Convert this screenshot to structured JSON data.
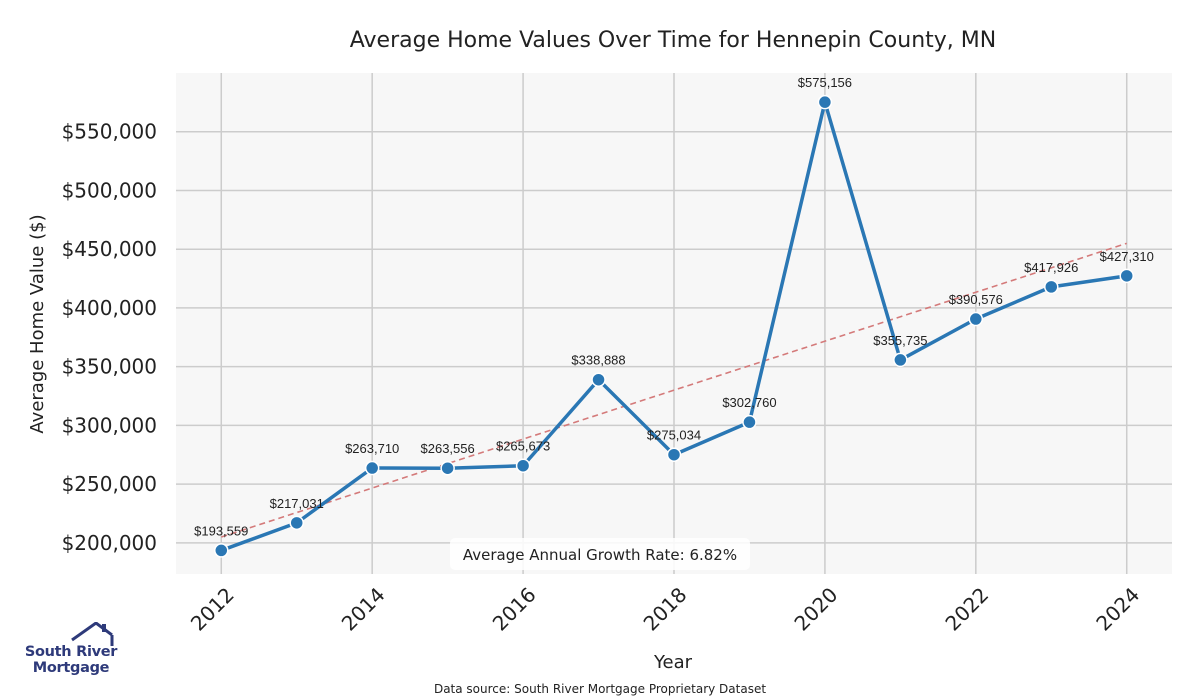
{
  "chart_data": {
    "type": "line",
    "title": "Average Home Values Over Time for Hennepin County, MN",
    "xlabel": "Year",
    "ylabel": "Average Home Value ($)",
    "x": [
      2012,
      2013,
      2014,
      2015,
      2016,
      2017,
      2018,
      2019,
      2020,
      2021,
      2022,
      2023,
      2024
    ],
    "series": [
      {
        "values": [
          193559,
          217031,
          263710,
          263556,
          265673,
          338888,
          275034,
          302760,
          575156,
          355735,
          390576,
          417926,
          427310
        ],
        "labels": [
          "$193,559",
          "$217,031",
          "$263,710",
          "$263,556",
          "$265,673",
          "$338,888",
          "$275,034",
          "$302,760",
          "$575,156",
          "$355,735",
          "$390,576",
          "$417,926",
          "$427,310"
        ],
        "color": "#2a77b4"
      }
    ],
    "trendline": {
      "start": [
        2012,
        205000
      ],
      "end": [
        2024,
        455000
      ],
      "color": "#d47a7a",
      "style": "dashed"
    },
    "xticks": [
      2012,
      2014,
      2016,
      2018,
      2020,
      2022,
      2024
    ],
    "xtick_labels": [
      "2012",
      "2014",
      "2016",
      "2018",
      "2020",
      "2022",
      "2024"
    ],
    "yticks": [
      200000,
      250000,
      300000,
      350000,
      400000,
      450000,
      500000,
      550000
    ],
    "ytick_labels": [
      "$200,000",
      "$250,000",
      "$300,000",
      "$350,000",
      "$400,000",
      "$450,000",
      "$500,000",
      "$550,000"
    ],
    "xlim": [
      2011.4,
      2024.6
    ],
    "ylim": [
      173500,
      600000
    ],
    "grid": true,
    "annotation": "Average Annual Growth Rate: 6.82%",
    "source": "Data source: South River Mortgage Proprietary Dataset"
  },
  "logo": {
    "line1": "South River",
    "line2": "Mortgage",
    "color": "#2e3a7a"
  }
}
